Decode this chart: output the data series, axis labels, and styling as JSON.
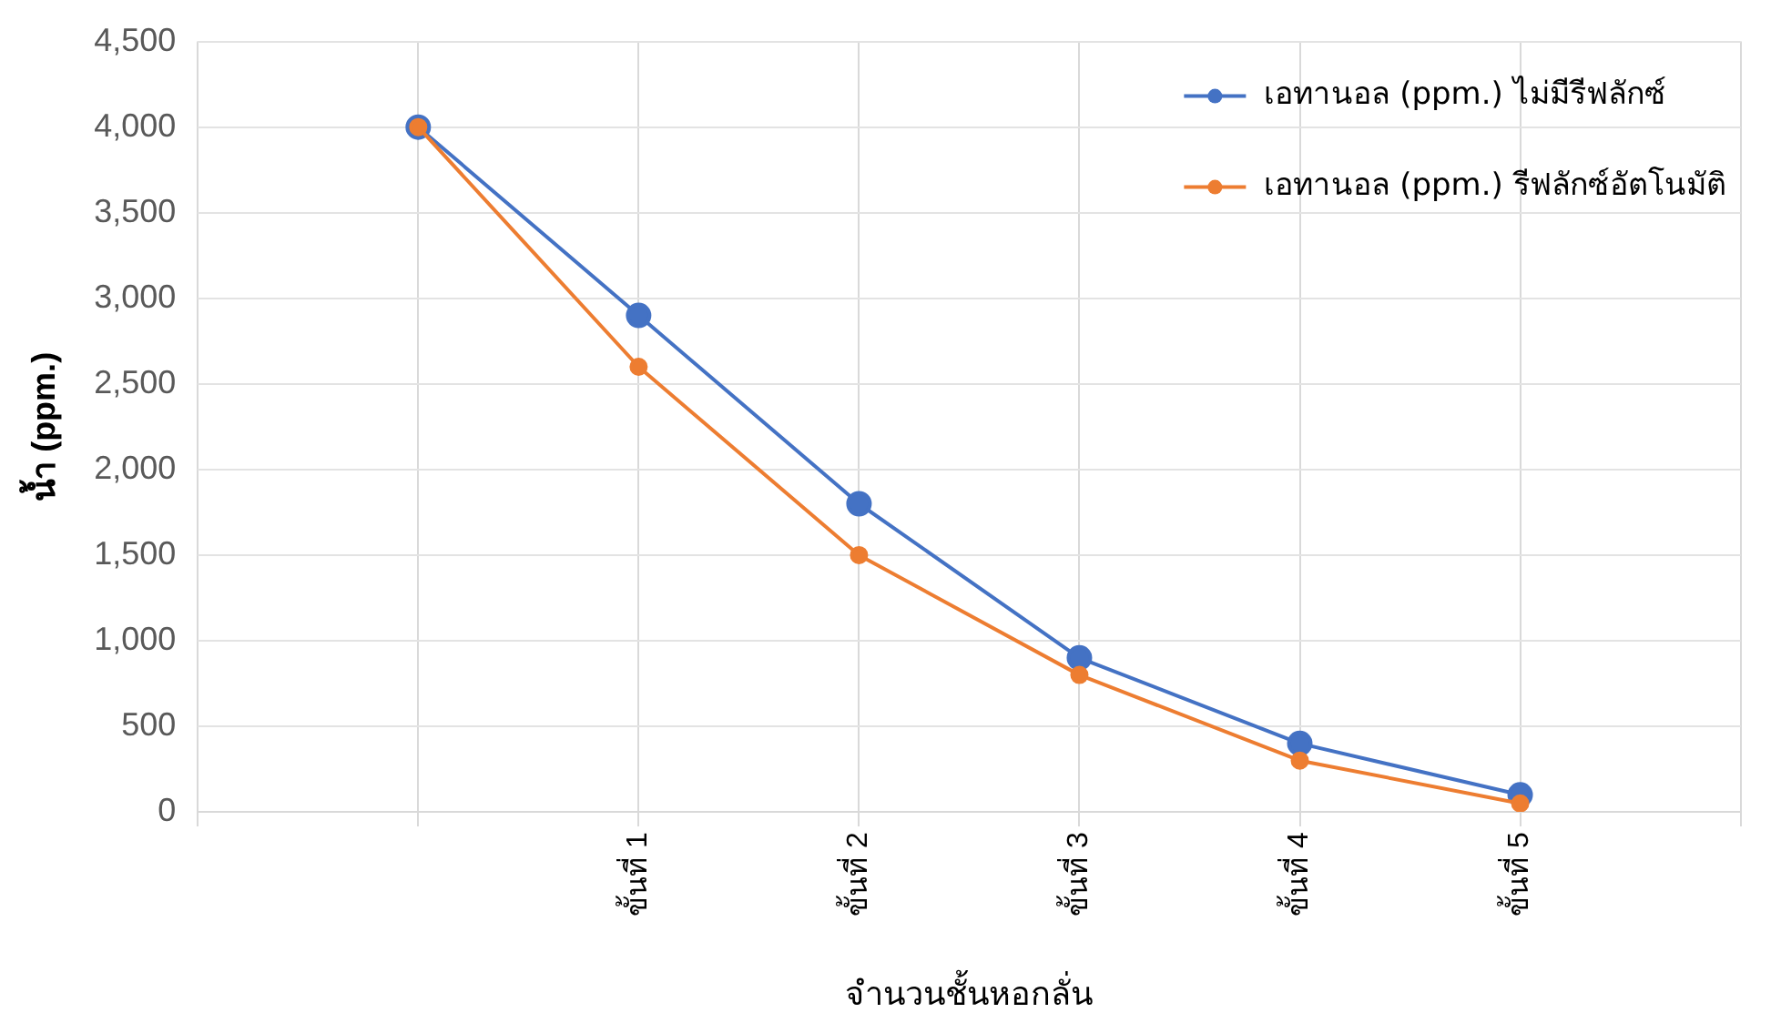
{
  "chart_data": {
    "type": "line",
    "xlabel": "จำนวนชั้นหอกลั่น",
    "ylabel": "น้ำ (ppm.)",
    "categories": [
      null,
      null,
      "ขั้นที่ 1",
      "ขั้นที่ 2",
      "ขั้นที่ 3",
      "ขั้นที่ 4",
      "ขั้นที่ 5",
      null
    ],
    "series": [
      {
        "name": "เอทานอล (ppm.) ไม่มีรีฟลักซ์",
        "color": "#4472c4",
        "values": [
          null,
          4000,
          2900,
          1800,
          900,
          400,
          100,
          null
        ]
      },
      {
        "name": "เอทานอล (ppm.) รีฟลักซ์อัตโนมัติ",
        "color": "#ed7d31",
        "values": [
          null,
          4000,
          2600,
          1500,
          800,
          300,
          50,
          null
        ]
      }
    ],
    "ylim": [
      0,
      4500
    ],
    "yticks": [
      {
        "value": 0,
        "label": "0"
      },
      {
        "value": 500,
        "label": "500"
      },
      {
        "value": 1000,
        "label": "1,000"
      },
      {
        "value": 1500,
        "label": "1,500"
      },
      {
        "value": 2000,
        "label": "2,000"
      },
      {
        "value": 2500,
        "label": "2,500"
      },
      {
        "value": 3000,
        "label": "3,000"
      },
      {
        "value": 3500,
        "label": "3,500"
      },
      {
        "value": 4000,
        "label": "4,000"
      },
      {
        "value": 4500,
        "label": "4,500"
      }
    ],
    "grid": true,
    "legend": "top right",
    "marker": "circle",
    "line_style": "solid"
  }
}
